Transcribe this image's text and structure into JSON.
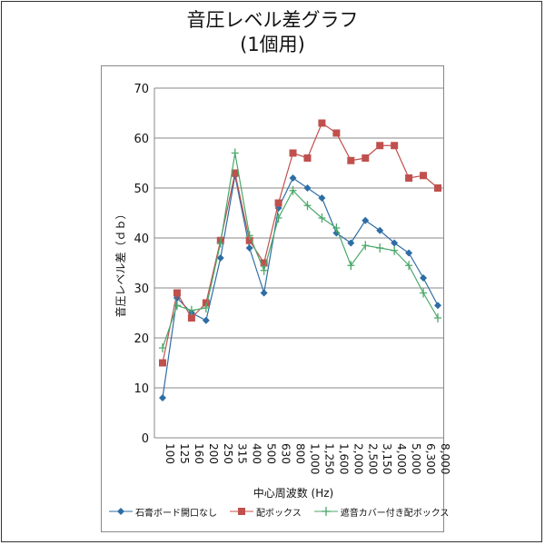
{
  "title_line1": "音圧レベル差グラフ",
  "title_line2": "(1個用)",
  "chart_data": {
    "type": "line",
    "title": "音圧レベル差グラフ (1個用)",
    "xlabel": "中心周波数 (Hz)",
    "ylabel": "音圧レベル差（ｄｂ）",
    "ylim": [
      0,
      70
    ],
    "yticks": [
      0,
      10,
      20,
      30,
      40,
      50,
      60,
      70
    ],
    "grid": true,
    "legend_position": "bottom",
    "categories": [
      "100",
      "125",
      "160",
      "200",
      "250",
      "315",
      "400",
      "500",
      "630",
      "800",
      "1,000",
      "1,250",
      "1,600",
      "2,000",
      "2,500",
      "3,150",
      "4,000",
      "5,000",
      "6,300",
      "8,000"
    ],
    "series": [
      {
        "name": "石膏ボード開口なし",
        "color": "#2e6da4",
        "marker": "diamond",
        "values": [
          8,
          28,
          25,
          23.5,
          36,
          52.5,
          38,
          29,
          46,
          52,
          50,
          48,
          41,
          39,
          43.5,
          41.5,
          39,
          37,
          32,
          26.5
        ]
      },
      {
        "name": "配ボックス",
        "color": "#c0504d",
        "marker": "square",
        "values": [
          15,
          29,
          24,
          27,
          39.5,
          53,
          39.5,
          35,
          47,
          57,
          56,
          63,
          61,
          55.5,
          56,
          58.5,
          58.5,
          52,
          52.5,
          50
        ]
      },
      {
        "name": "遮音カバー付き配ボックス",
        "color": "#4aa86a",
        "marker": "plus",
        "values": [
          18,
          26.5,
          25.5,
          26,
          39,
          57,
          40.5,
          33.5,
          44,
          49.5,
          46.5,
          44,
          42,
          34.5,
          38.5,
          38,
          37.5,
          34.5,
          29,
          24
        ]
      }
    ]
  }
}
